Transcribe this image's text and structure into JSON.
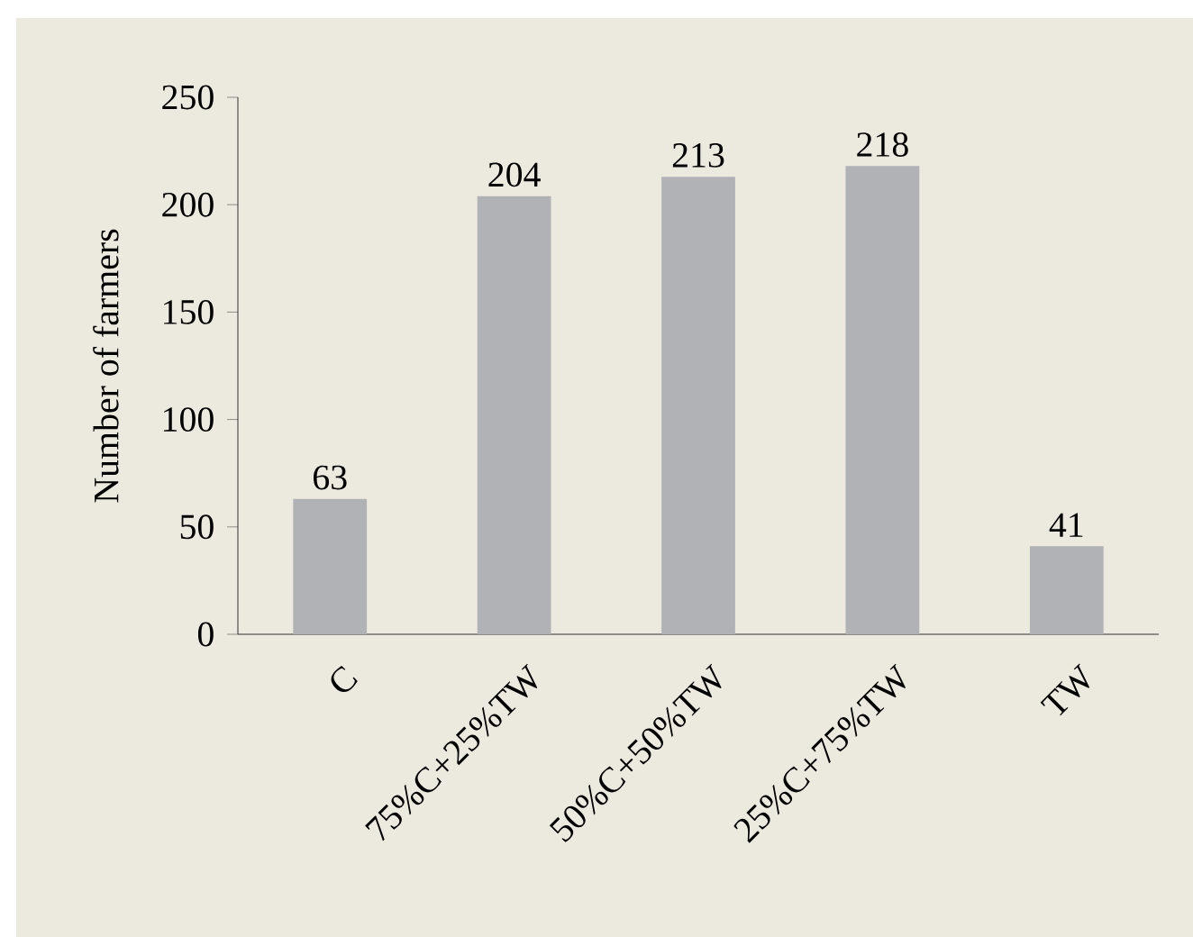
{
  "chart_data": {
    "type": "bar",
    "ylabel": "Number of farmers",
    "categories": [
      "C",
      "75%C+25%TW",
      "50%C+50%TW",
      "25%C+75%TW",
      "TW"
    ],
    "values": [
      63,
      204,
      213,
      218,
      41
    ],
    "color": "#b0b2b5",
    "ylim": [
      0,
      250
    ],
    "yticks": [
      0,
      50,
      100,
      150,
      200,
      250
    ],
    "data_labels": true
  }
}
